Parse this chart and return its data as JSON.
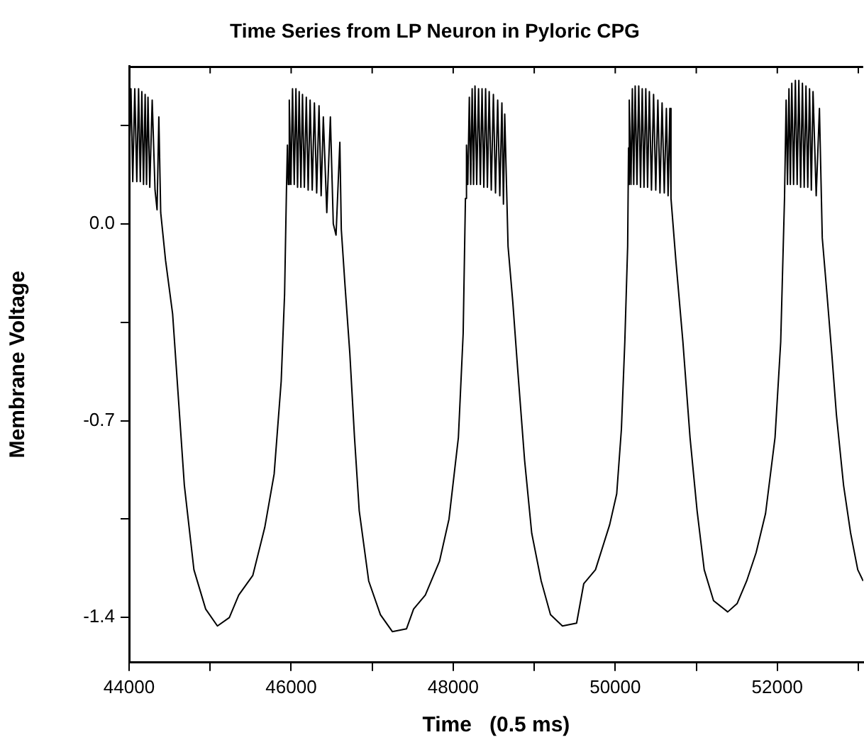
{
  "chart_data": {
    "type": "line",
    "title": "Time Series from LP Neuron in Pyloric CPG",
    "xlabel": "Time   (0.5 ms)",
    "ylabel": "Membrane Voltage",
    "xlim": [
      44000,
      53060
    ],
    "ylim": [
      -1.56,
      0.56
    ],
    "xticks": [
      44000,
      {
        "value": 45000,
        "label": null
      },
      46000,
      {
        "value": 47000,
        "label": null
      },
      48000,
      {
        "value": 49000,
        "label": null
      },
      50000,
      {
        "value": 51000,
        "label": null
      },
      52000,
      {
        "value": 53000,
        "label": null
      }
    ],
    "yticks": [
      -1.4,
      {
        "value": -1.05,
        "label": null
      },
      -0.7,
      {
        "value": -0.35,
        "label": null
      },
      {
        "value": 0,
        "label": "0.0"
      },
      {
        "value": 0.35,
        "label": null
      }
    ],
    "grid": false,
    "legend": false,
    "marker": "none",
    "line_style": "solid",
    "series": [
      {
        "color": "#000000",
        "x": [
          44000,
          44023,
          44045,
          44070,
          44095,
          44117,
          44138,
          44157,
          44178,
          44198,
          44215,
          44233,
          44255,
          44285,
          44320,
          44345,
          44367,
          44390,
          44450,
          44537,
          44625,
          44682,
          44800,
          44945,
          45090,
          45237,
          45353,
          45527,
          45674,
          45790,
          45877,
          45919,
          45942,
          45954,
          45965,
          45977,
          45997,
          46017,
          46038,
          46059,
          46079,
          46099,
          46120,
          46140,
          46163,
          46187,
          46210,
          46234,
          46260,
          46287,
          46315,
          46344,
          46370,
          46397,
          46440,
          46484,
          46520,
          46554,
          46601,
          46619,
          46665,
          46724,
          46782,
          46840,
          46957,
          47102,
          47249,
          47424,
          47511,
          47656,
          47831,
          47948,
          48064,
          48123,
          48151,
          48164,
          48180,
          48199,
          48216,
          48234,
          48251,
          48269,
          48290,
          48313,
          48335,
          48356,
          48378,
          48400,
          48422,
          48444,
          48470,
          48496,
          48522,
          48549,
          48575,
          48601,
          48620,
          48636,
          48677,
          48736,
          48794,
          48881,
          48969,
          49086,
          49201,
          49348,
          49523,
          49611,
          49756,
          49931,
          50018,
          50076,
          50118,
          50153,
          50164,
          50170,
          50176,
          50194,
          50211,
          50228,
          50246,
          50268,
          50290,
          50312,
          50333,
          50355,
          50377,
          50399,
          50421,
          50447,
          50473,
          50500,
          50526,
          50552,
          50578,
          50605,
          50631,
          50652,
          50674,
          50688,
          50748,
          50835,
          50923,
          51010,
          51098,
          51213,
          51388,
          51505,
          51622,
          51738,
          51855,
          51972,
          52042,
          52089,
          52109,
          52126,
          52144,
          52161,
          52179,
          52201,
          52223,
          52245,
          52266,
          52288,
          52310,
          52332,
          52354,
          52376,
          52398,
          52420,
          52441,
          52480,
          52520,
          52555,
          52613,
          52672,
          52730,
          52818,
          52905,
          52993,
          53060
        ],
        "values": [
          0.2,
          0.48,
          0.15,
          0.48,
          0.15,
          0.48,
          0.15,
          0.47,
          0.14,
          0.46,
          0.14,
          0.45,
          0.13,
          0.44,
          0.12,
          0.05,
          0.38,
          0.04,
          -0.13,
          -0.32,
          -0.69,
          -0.93,
          -1.23,
          -1.37,
          -1.43,
          -1.4,
          -1.32,
          -1.25,
          -1.08,
          -0.89,
          -0.56,
          -0.25,
          0.12,
          0.28,
          0.14,
          0.44,
          0.14,
          0.48,
          0.14,
          0.48,
          0.13,
          0.47,
          0.13,
          0.46,
          0.13,
          0.45,
          0.12,
          0.44,
          0.12,
          0.43,
          0.11,
          0.42,
          0.1,
          0.38,
          0.04,
          0.38,
          0.0,
          -0.04,
          0.29,
          -0.02,
          -0.22,
          -0.46,
          -0.76,
          -1.02,
          -1.27,
          -1.39,
          -1.45,
          -1.44,
          -1.37,
          -1.32,
          -1.2,
          -1.05,
          -0.76,
          -0.39,
          0.09,
          0.28,
          0.14,
          0.45,
          0.14,
          0.48,
          0.14,
          0.49,
          0.14,
          0.48,
          0.14,
          0.48,
          0.13,
          0.48,
          0.13,
          0.47,
          0.12,
          0.46,
          0.11,
          0.44,
          0.1,
          0.43,
          0.07,
          0.39,
          -0.08,
          -0.28,
          -0.51,
          -0.84,
          -1.1,
          -1.27,
          -1.39,
          -1.43,
          -1.42,
          -1.28,
          -1.23,
          -1.07,
          -0.96,
          -0.73,
          -0.42,
          -0.08,
          0.27,
          0.14,
          0.44,
          0.14,
          0.48,
          0.14,
          0.49,
          0.14,
          0.49,
          0.13,
          0.48,
          0.13,
          0.48,
          0.13,
          0.47,
          0.12,
          0.46,
          0.12,
          0.44,
          0.11,
          0.43,
          0.11,
          0.41,
          0.1,
          0.41,
          0.09,
          -0.13,
          -0.42,
          -0.76,
          -1.02,
          -1.23,
          -1.34,
          -1.38,
          -1.35,
          -1.27,
          -1.17,
          -1.03,
          -0.76,
          -0.42,
          0.09,
          0.44,
          0.14,
          0.48,
          0.14,
          0.5,
          0.14,
          0.51,
          0.14,
          0.51,
          0.13,
          0.5,
          0.13,
          0.49,
          0.13,
          0.48,
          0.12,
          0.47,
          0.1,
          0.41,
          -0.05,
          -0.25,
          -0.46,
          -0.68,
          -0.93,
          -1.1,
          -1.23,
          -1.27
        ]
      }
    ]
  }
}
